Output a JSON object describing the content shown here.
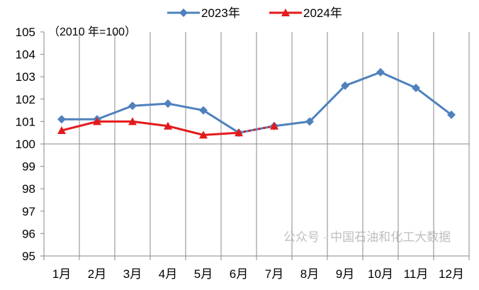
{
  "chart_data": {
    "type": "line",
    "title": "",
    "note": "（2010 年=100）",
    "xlabel": "",
    "ylabel": "",
    "ylim": [
      95,
      105
    ],
    "yticks": [
      95,
      96,
      97,
      98,
      99,
      100,
      101,
      102,
      103,
      104,
      105
    ],
    "grid": "vertical",
    "legend_position": "top-center",
    "categories": [
      "1月",
      "2月",
      "3月",
      "4月",
      "5月",
      "6月",
      "7月",
      "8月",
      "9月",
      "10月",
      "11月",
      "12月"
    ],
    "series": [
      {
        "name": "2023年",
        "color": "#4F81BD",
        "marker": "diamond",
        "values": [
          101.1,
          101.1,
          101.7,
          101.8,
          101.5,
          100.5,
          100.8,
          101.0,
          102.6,
          103.2,
          102.5,
          101.3
        ]
      },
      {
        "name": "2024年",
        "color": "#E41A1C",
        "marker": "triangle",
        "dotted_last_segment": true,
        "values": [
          100.6,
          101.0,
          101.0,
          100.8,
          100.4,
          100.5,
          100.8,
          null,
          null,
          null,
          null,
          null
        ]
      }
    ]
  },
  "watermark": "公众号 · 中国石油和化工大数据"
}
